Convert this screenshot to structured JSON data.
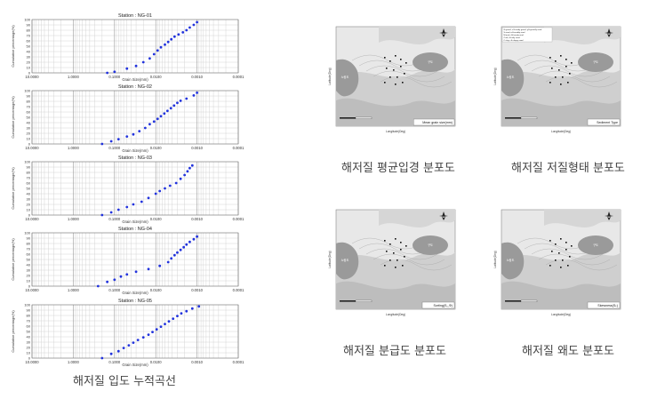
{
  "left_caption": "해저질 입도 누적곡선",
  "common_axes": {
    "xlabel": "Grain Size(mm)",
    "ylabel": "Cumulative percentage(%)",
    "xticks": [
      "10.0000",
      "1.0000",
      "0.1000",
      "0.0100",
      "0.0010",
      "0.0001"
    ],
    "yticks": [
      "0",
      "10",
      "20",
      "30",
      "40",
      "50",
      "60",
      "70",
      "80",
      "90",
      "100"
    ]
  },
  "chart_data": [
    {
      "type": "scatter",
      "title": "Station : NG-01",
      "xscale": "log-reversed",
      "xlim": [
        10,
        0.0001
      ],
      "ylim": [
        0,
        100
      ],
      "grid": true,
      "x": [
        0.15,
        0.1,
        0.05,
        0.03,
        0.02,
        0.014,
        0.011,
        0.009,
        0.0075,
        0.006,
        0.005,
        0.0042,
        0.0035,
        0.0028,
        0.0022,
        0.0018,
        0.0015,
        0.0012,
        0.001
      ],
      "y": [
        0,
        2,
        8,
        13,
        20,
        27,
        35,
        42,
        48,
        53,
        58,
        63,
        68,
        72,
        76,
        80,
        85,
        90,
        95
      ]
    },
    {
      "type": "scatter",
      "title": "Station : NG-02",
      "xscale": "log-reversed",
      "xlim": [
        10,
        0.0001
      ],
      "ylim": [
        0,
        100
      ],
      "grid": true,
      "x": [
        0.2,
        0.12,
        0.08,
        0.05,
        0.035,
        0.025,
        0.018,
        0.014,
        0.011,
        0.009,
        0.0075,
        0.0062,
        0.0052,
        0.0043,
        0.0036,
        0.003,
        0.0025,
        0.0018,
        0.0012,
        0.001
      ],
      "y": [
        0,
        5,
        9,
        14,
        18,
        24,
        30,
        37,
        42,
        47,
        52,
        57,
        62,
        67,
        72,
        77,
        81,
        85,
        91,
        96
      ]
    },
    {
      "type": "scatter",
      "title": "Station : NG-03",
      "xscale": "log-reversed",
      "xlim": [
        10,
        0.0001
      ],
      "ylim": [
        0,
        100
      ],
      "grid": true,
      "x": [
        0.2,
        0.12,
        0.08,
        0.05,
        0.035,
        0.022,
        0.015,
        0.01,
        0.008,
        0.006,
        0.0045,
        0.0032,
        0.0025,
        0.002,
        0.0017,
        0.0015,
        0.0013
      ],
      "y": [
        0,
        5,
        10,
        15,
        20,
        25,
        32,
        40,
        45,
        50,
        55,
        60,
        68,
        75,
        82,
        88,
        93
      ]
    },
    {
      "type": "scatter",
      "title": "Station : NG-04",
      "xscale": "log-reversed",
      "xlim": [
        10,
        0.0001
      ],
      "ylim": [
        0,
        100
      ],
      "grid": true,
      "x": [
        0.25,
        0.15,
        0.1,
        0.07,
        0.05,
        0.03,
        0.015,
        0.008,
        0.005,
        0.0042,
        0.0035,
        0.003,
        0.0025,
        0.0021,
        0.0018,
        0.0015,
        0.0012,
        0.001
      ],
      "y": [
        0,
        8,
        12,
        18,
        22,
        27,
        32,
        38,
        45,
        52,
        58,
        63,
        68,
        73,
        78,
        83,
        88,
        93
      ]
    },
    {
      "type": "scatter",
      "title": "Station : NG-05",
      "xscale": "log-reversed",
      "xlim": [
        10,
        0.0001
      ],
      "ylim": [
        0,
        100
      ],
      "grid": true,
      "x": [
        0.2,
        0.12,
        0.08,
        0.06,
        0.045,
        0.035,
        0.027,
        0.02,
        0.015,
        0.012,
        0.0095,
        0.0075,
        0.006,
        0.0048,
        0.0038,
        0.003,
        0.0024,
        0.0018,
        0.0013,
        0.0009
      ],
      "y": [
        0,
        8,
        13,
        19,
        24,
        29,
        34,
        39,
        44,
        49,
        54,
        59,
        64,
        69,
        74,
        79,
        84,
        88,
        93,
        97
      ]
    }
  ],
  "maps": [
    {
      "caption": "해저질 평균입경 분포도",
      "legend": "Mean grain size(mm)",
      "island_left": "노량도",
      "island_right": "구도",
      "xlabel": "Longitude(Deg)",
      "ylabel": "Latitude(Deg)"
    },
    {
      "caption": "해저질 저질형태 분포도",
      "legend": "Sediment Type",
      "island_left": "노량도",
      "island_right": "구도",
      "xlabel": "Longitude(Deg)",
      "ylabel": "Latitude(Deg)",
      "key": [
        "G:gravel, sG:sandy gravel, gS:gravelly sand",
        "S:sand, mS:muddy sand",
        "M:mud, sM:sandy mud",
        "Z:silt, zS:silty sand",
        "C:clay, cS:clayey sand"
      ]
    },
    {
      "caption": "해저질 분급도 분포도",
      "legend": "Sorting(S₀,Φ)",
      "island_left": "노량도",
      "island_right": "구도",
      "xlabel": "Longitude(Deg)",
      "ylabel": "Latitude(Deg)"
    },
    {
      "caption": "해저질 왜도 분포도",
      "legend": "Skewness(Sₖ)",
      "island_left": "노량도",
      "island_right": "구도",
      "xlabel": "Longitude(Deg)",
      "ylabel": "Latitude(Deg)"
    }
  ],
  "colors": {
    "grid_major": "#999999",
    "grid_minor": "#cccccc",
    "points": "#2233dd",
    "map_light": "#e8e8e8",
    "map_mid": "#cfcfcf",
    "land": "#9a9a9a"
  },
  "icons": {
    "north_arrow": "compass-rose-icon"
  }
}
